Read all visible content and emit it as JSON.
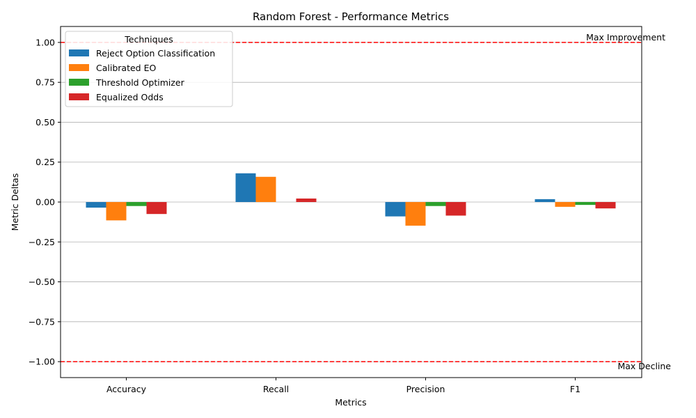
{
  "chart_data": {
    "type": "bar",
    "title": "Random Forest - Performance Metrics",
    "xlabel": "Metrics",
    "ylabel": "Metric Deltas",
    "categories": [
      "Accuracy",
      "Recall",
      "Precision",
      "F1"
    ],
    "ylim": [
      -1.1,
      1.1
    ],
    "yticks": [
      -1.0,
      -0.75,
      -0.5,
      -0.25,
      0.0,
      0.25,
      0.5,
      0.75,
      1.0
    ],
    "ytick_labels": [
      "−1.00",
      "−0.75",
      "−0.50",
      "−0.25",
      "0.00",
      "0.25",
      "0.50",
      "0.75",
      "1.00"
    ],
    "grid": "y",
    "legend_title": "Techniques",
    "legend_position": "top-left",
    "series": [
      {
        "name": "Reject Option Classification",
        "color": "#1f77b4",
        "values": [
          -0.035,
          0.18,
          -0.09,
          0.018
        ]
      },
      {
        "name": "Calibrated EO",
        "color": "#ff7f0e",
        "values": [
          -0.115,
          0.158,
          -0.148,
          -0.03
        ]
      },
      {
        "name": "Threshold Optimizer",
        "color": "#2ca02c",
        "values": [
          -0.025,
          0.0,
          -0.025,
          -0.018
        ]
      },
      {
        "name": "Equalized Odds",
        "color": "#d62728",
        "values": [
          -0.075,
          0.022,
          -0.085,
          -0.04
        ]
      }
    ],
    "reference_lines": [
      {
        "value": 1.0,
        "label": "Max Improvement",
        "color": "#ff0000"
      },
      {
        "value": -1.0,
        "label": "Max Decline",
        "color": "#ff0000"
      }
    ]
  }
}
